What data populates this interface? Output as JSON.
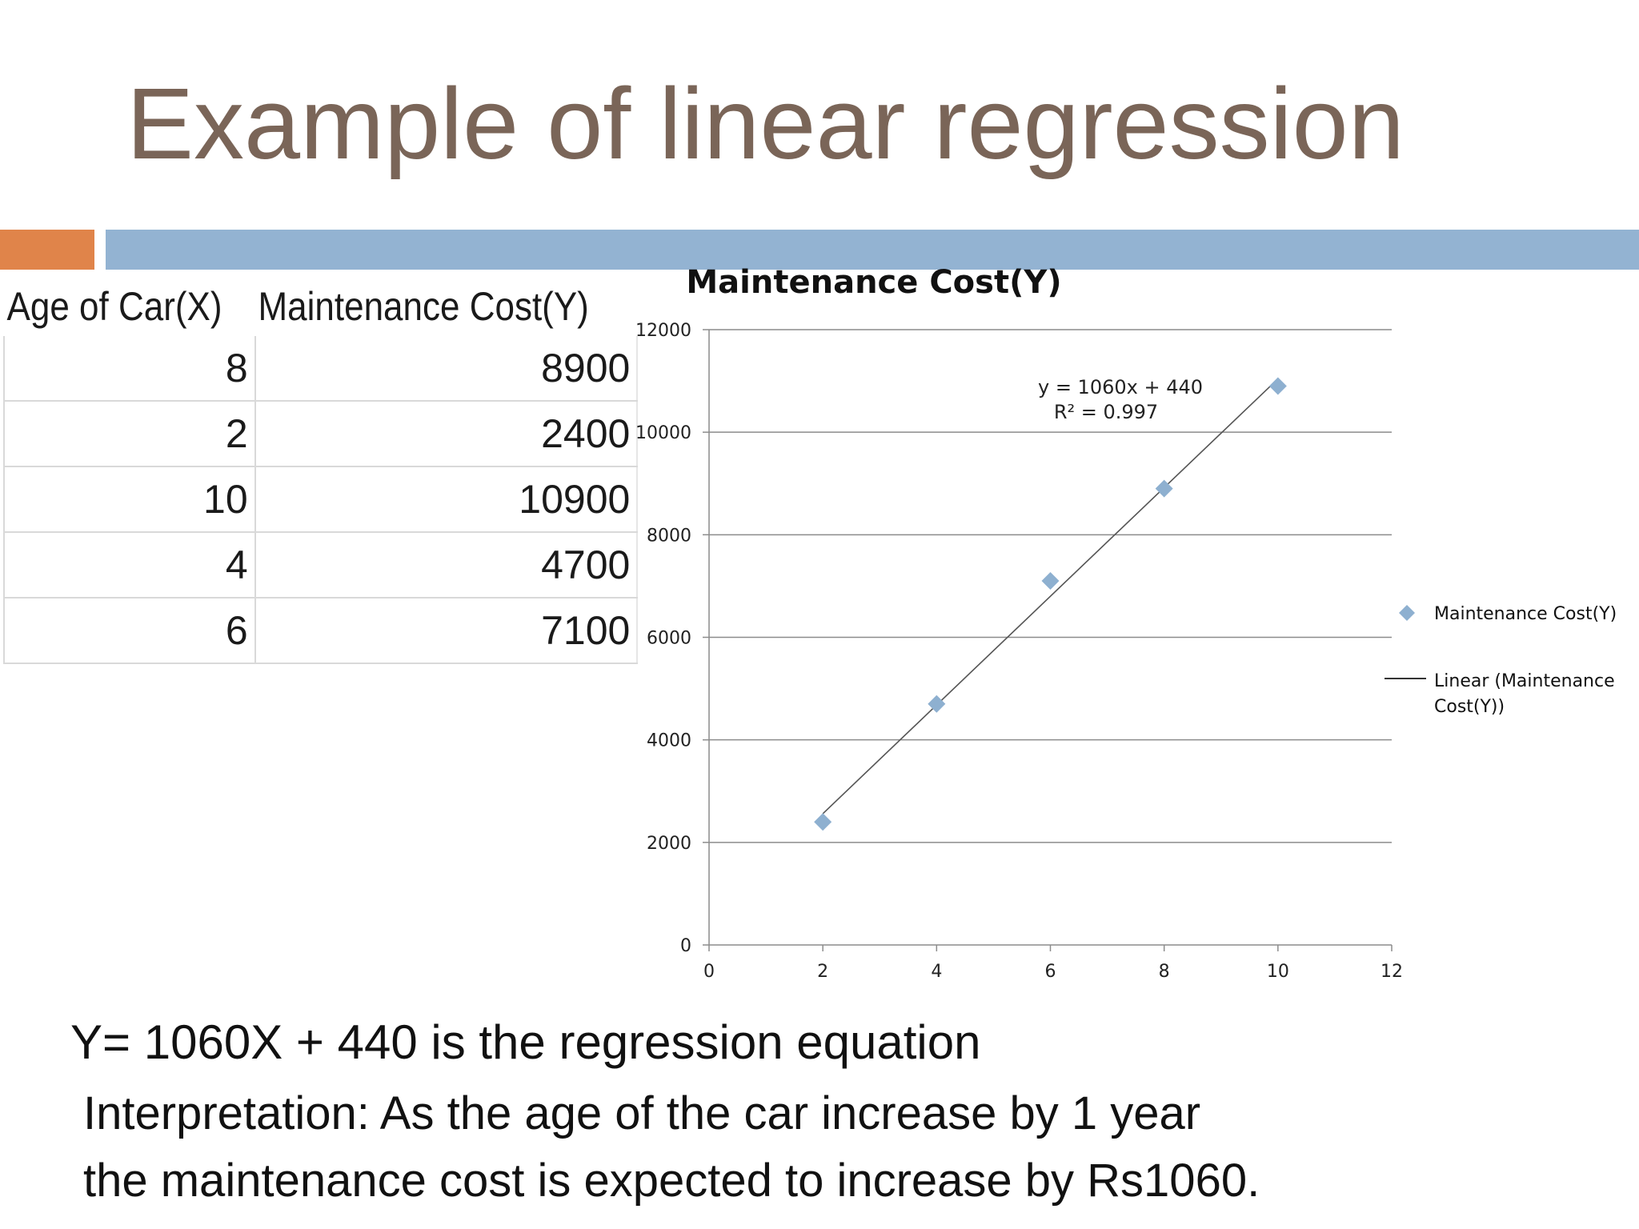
{
  "slide": {
    "title": "Example of linear regression",
    "equation_text": "Y= 1060X + 440 is the regression equation",
    "interpretation_line1": "Interpretation: As the age of the car increase by 1 year",
    "interpretation_line2": "the maintenance cost is expected to increase by Rs1060."
  },
  "colors": {
    "title": "#7a6558",
    "accent_orange": "#e0844a",
    "accent_blue": "#93b3d2",
    "marker": "#8eb0d0",
    "trendline": "#555555",
    "gridline": "#8c8c8c"
  },
  "table": {
    "headers": [
      "Age of Car(X)",
      "Maintenance Cost(Y)"
    ],
    "rows": [
      [
        "8",
        "8900"
      ],
      [
        "2",
        "2400"
      ],
      [
        "10",
        "10900"
      ],
      [
        "4",
        "4700"
      ],
      [
        "6",
        "7100"
      ]
    ]
  },
  "chart_data": {
    "type": "scatter",
    "title": "Maintenance Cost(Y)",
    "xlabel": "",
    "ylabel": "",
    "xlim": [
      0,
      12
    ],
    "ylim": [
      0,
      12000
    ],
    "x_ticks": [
      "0",
      "2",
      "4",
      "6",
      "8",
      "10",
      "12"
    ],
    "y_ticks": [
      "0",
      "2000",
      "4000",
      "6000",
      "8000",
      "10000",
      "12000"
    ],
    "grid": "horizontal",
    "legend_position": "right",
    "series": [
      {
        "name": "Maintenance Cost(Y)",
        "marker": "diamond",
        "x": [
          8,
          2,
          10,
          4,
          6
        ],
        "y": [
          8900,
          2400,
          10900,
          4700,
          7100
        ]
      }
    ],
    "trendline": {
      "name": "Linear (Maintenance Cost(Y))",
      "slope": 1060,
      "intercept": 440,
      "x_range": [
        2,
        10
      ]
    },
    "annotations": {
      "equation": "y = 1060x + 440",
      "r_squared": "R² = 0.997"
    },
    "legend": {
      "marker_label": "Maintenance Cost(Y)",
      "line_label_1": "Linear (Maintenance",
      "line_label_2": "Cost(Y))"
    }
  }
}
